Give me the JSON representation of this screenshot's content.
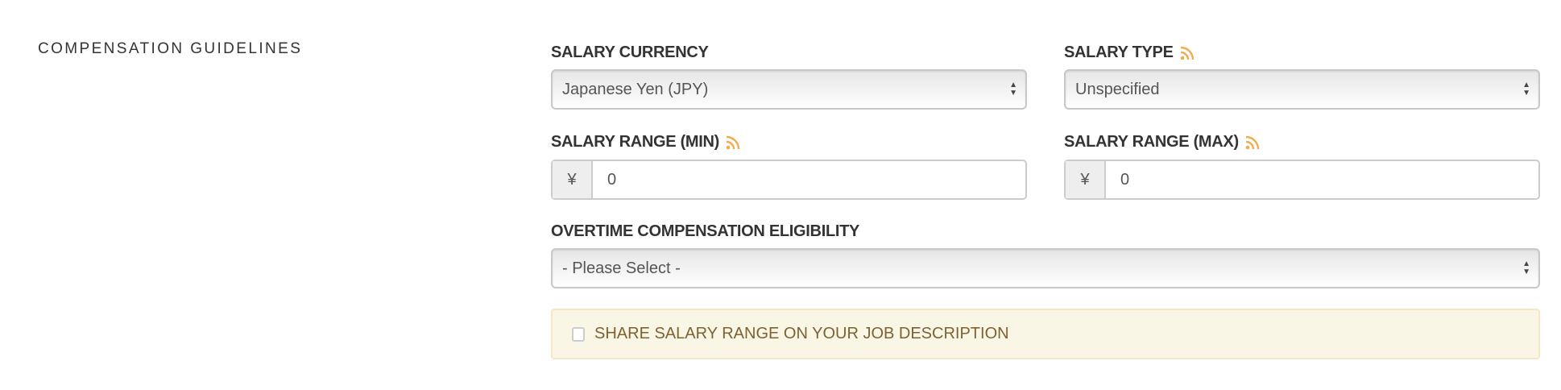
{
  "section": {
    "title": "COMPENSATION GUIDELINES"
  },
  "salary_currency": {
    "label": "SALARY CURRENCY",
    "value": "Japanese Yen (JPY)"
  },
  "salary_type": {
    "label": "SALARY TYPE",
    "value": "Unspecified",
    "icon": "rss-icon"
  },
  "salary_min": {
    "label": "SALARY RANGE (MIN)",
    "addon": "¥",
    "value": "0",
    "icon": "rss-icon"
  },
  "salary_max": {
    "label": "SALARY RANGE (MAX)",
    "addon": "¥",
    "value": "0",
    "icon": "rss-icon"
  },
  "overtime": {
    "label": "OVERTIME COMPENSATION ELIGIBILITY",
    "value": "- Please Select -"
  },
  "share": {
    "label": "SHARE SALARY RANGE ON YOUR JOB DESCRIPTION",
    "checked": false
  },
  "colors": {
    "rss": "#f0ad4e",
    "alert_bg": "#faf6e5",
    "alert_text": "#7d6232"
  }
}
